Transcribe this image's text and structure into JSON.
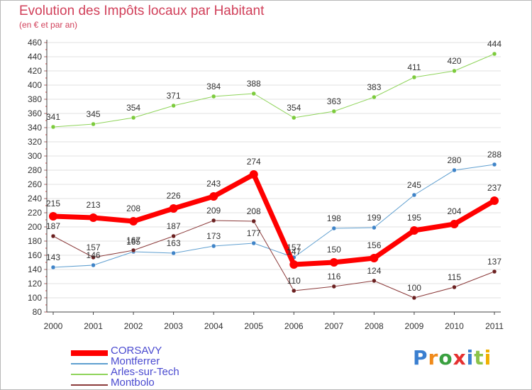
{
  "title": "Evolution des Impôts locaux par Habitant",
  "subtitle": "(en € et par an)",
  "logo": {
    "text": "Proxiti",
    "letter_colors": [
      "#3a7fd0",
      "#f08a1a",
      "#3aa040",
      "#e53030",
      "#3a7fd0",
      "#8bc34a",
      "#f0b000"
    ]
  },
  "chart_data": {
    "type": "line",
    "x": [
      "2000",
      "2001",
      "2002",
      "2003",
      "2004",
      "2005",
      "2006",
      "2007",
      "2008",
      "2009",
      "2010",
      "2011"
    ],
    "ylim": [
      80,
      460
    ],
    "yticks": [
      80,
      100,
      120,
      140,
      160,
      180,
      200,
      220,
      240,
      260,
      280,
      300,
      320,
      340,
      360,
      380,
      400,
      420,
      440,
      460
    ],
    "grid": true,
    "legend_position": "bottom-left",
    "series": [
      {
        "name": "Montferrer",
        "color": "#5f9fd0",
        "marker": "#3f84c8",
        "width": 1,
        "radius": 3,
        "values": [
          143,
          146,
          165,
          163,
          173,
          177,
          157,
          198,
          199,
          245,
          280,
          288
        ],
        "labels": [
          "143",
          "146",
          "165",
          "163",
          "173",
          "177",
          "157",
          "198",
          "199",
          "245",
          "280",
          "288"
        ]
      },
      {
        "name": "Arles-sur-Tech",
        "color": "#8fd45a",
        "marker": "#7ccb3c",
        "width": 1,
        "radius": 3,
        "values": [
          341,
          345,
          354,
          371,
          384,
          388,
          354,
          363,
          383,
          411,
          420,
          444
        ],
        "labels": [
          "341",
          "345",
          "354",
          "371",
          "384",
          "388",
          "354",
          "363",
          "383",
          "411",
          "420",
          "444"
        ]
      },
      {
        "name": "Montbolo",
        "color": "#8b3a3a",
        "marker": "#6b2020",
        "width": 1,
        "radius": 3,
        "values": [
          187,
          157,
          167,
          187,
          209,
          208,
          110,
          116,
          124,
          100,
          115,
          137
        ],
        "labels": [
          "187",
          "157",
          "167",
          "187",
          "209",
          "208",
          "110",
          "116",
          "124",
          "100",
          "115",
          "137"
        ]
      },
      {
        "name": "CORSAVY",
        "color": "#ff0000",
        "marker": "#ff0000",
        "width": 7,
        "radius": 6,
        "values": [
          215,
          213,
          208,
          226,
          243,
          274,
          147,
          150,
          156,
          195,
          204,
          237
        ],
        "labels": [
          "215",
          "213",
          "208",
          "226",
          "243",
          "274",
          "147",
          "150",
          "156",
          "195",
          "204",
          "237"
        ]
      }
    ],
    "legend": [
      {
        "name": "CORSAVY",
        "color": "#ff0000",
        "thickness": 8
      },
      {
        "name": "Montferrer",
        "color": "#5f9fd0",
        "thickness": 2
      },
      {
        "name": "Arles-sur-Tech",
        "color": "#8fd45a",
        "thickness": 2
      },
      {
        "name": "Montbolo",
        "color": "#8b3a3a",
        "thickness": 2
      }
    ]
  }
}
